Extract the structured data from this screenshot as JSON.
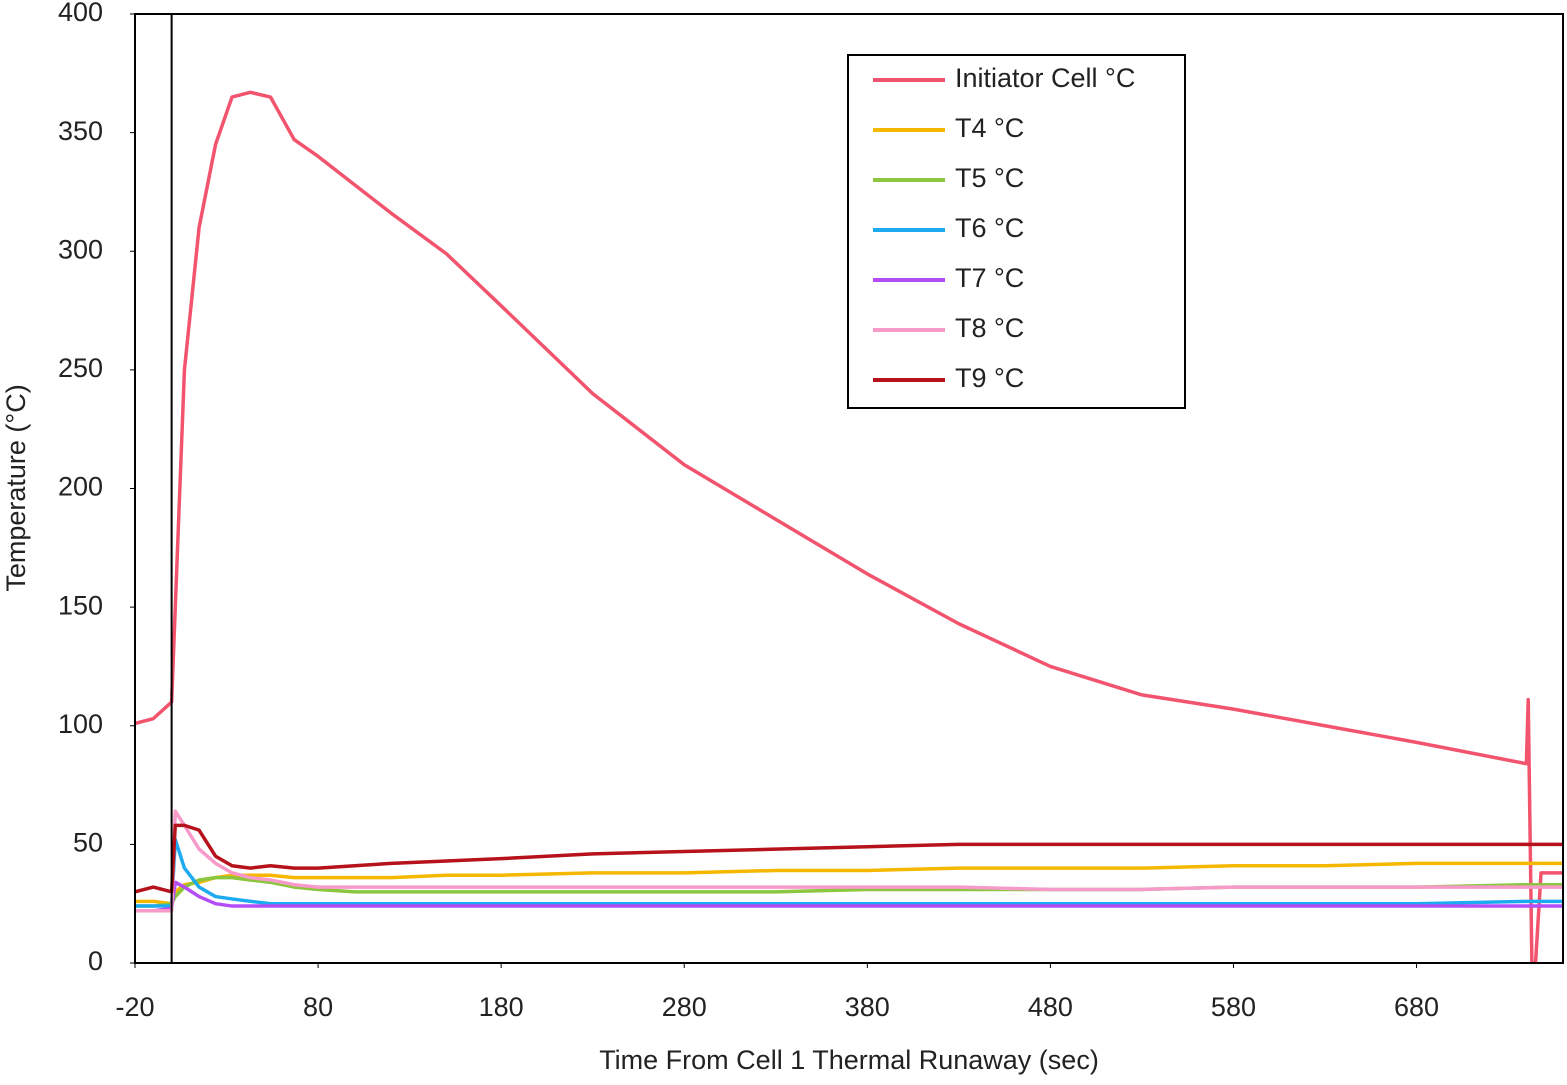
{
  "chart_data": {
    "type": "line",
    "x_label": "Time From Cell 1 Thermal Runaway (sec)",
    "y_label": "Temperature (°C)",
    "xlim": [
      -20,
      760
    ],
    "ylim": [
      0,
      400
    ],
    "xticks": [
      -20,
      80,
      180,
      280,
      380,
      480,
      580,
      680
    ],
    "yticks": [
      0,
      50,
      100,
      150,
      200,
      250,
      300,
      350,
      400
    ],
    "reference_line_x": 0,
    "legend": "top-right",
    "x": [
      -20,
      -10,
      0,
      2,
      7,
      15,
      24,
      33,
      43,
      54,
      67,
      80,
      100,
      120,
      150,
      180,
      230,
      280,
      330,
      380,
      430,
      480,
      530,
      580,
      630,
      680,
      740,
      741,
      743,
      745,
      748,
      760
    ],
    "series": [
      {
        "name": "Initiator Cell °C",
        "color": "#f2546e",
        "values": [
          101,
          103,
          110,
          150,
          250,
          310,
          345,
          365,
          367,
          365,
          347,
          340,
          328,
          316,
          299,
          277,
          240,
          210,
          187,
          164,
          143,
          125,
          113,
          107,
          100,
          93,
          84,
          111,
          0,
          0,
          38,
          38
        ]
      },
      {
        "name": "T4 °C",
        "color": "#f5b700",
        "values": [
          26,
          26,
          25,
          30,
          33,
          34,
          36,
          37,
          37,
          37,
          36,
          36,
          36,
          36,
          37,
          37,
          38,
          38,
          39,
          39,
          40,
          40,
          40,
          41,
          41,
          42,
          42,
          42,
          42,
          42,
          42,
          42
        ]
      },
      {
        "name": "T5 °C",
        "color": "#8cc63f",
        "values": [
          24,
          24,
          25,
          28,
          32,
          35,
          36,
          36,
          35,
          34,
          32,
          31,
          30,
          30,
          30,
          30,
          30,
          30,
          30,
          31,
          31,
          31,
          31,
          32,
          32,
          32,
          33,
          33,
          33,
          33,
          33,
          33
        ]
      },
      {
        "name": "T6 °C",
        "color": "#1eaaf1",
        "values": [
          24,
          24,
          24,
          52,
          40,
          32,
          28,
          27,
          26,
          25,
          25,
          25,
          25,
          25,
          25,
          25,
          25,
          25,
          25,
          25,
          25,
          25,
          25,
          25,
          25,
          25,
          26,
          26,
          26,
          26,
          26,
          26
        ]
      },
      {
        "name": "T7 °C",
        "color": "#b44df5",
        "values": [
          22,
          22,
          23,
          34,
          32,
          28,
          25,
          24,
          24,
          24,
          24,
          24,
          24,
          24,
          24,
          24,
          24,
          24,
          24,
          24,
          24,
          24,
          24,
          24,
          24,
          24,
          24,
          24,
          24,
          24,
          24,
          24
        ]
      },
      {
        "name": "T8 °C",
        "color": "#f79ac9",
        "values": [
          22,
          22,
          22,
          64,
          58,
          48,
          42,
          38,
          36,
          35,
          33,
          32,
          32,
          32,
          32,
          32,
          32,
          32,
          32,
          32,
          32,
          31,
          31,
          32,
          32,
          32,
          32,
          32,
          32,
          32,
          32,
          32
        ]
      },
      {
        "name": "T9 °C",
        "color": "#b5121b",
        "values": [
          30,
          32,
          30,
          58,
          58,
          56,
          45,
          41,
          40,
          41,
          40,
          40,
          41,
          42,
          43,
          44,
          46,
          47,
          48,
          49,
          50,
          50,
          50,
          50,
          50,
          50,
          50,
          50,
          50,
          50,
          50,
          50
        ]
      }
    ]
  }
}
